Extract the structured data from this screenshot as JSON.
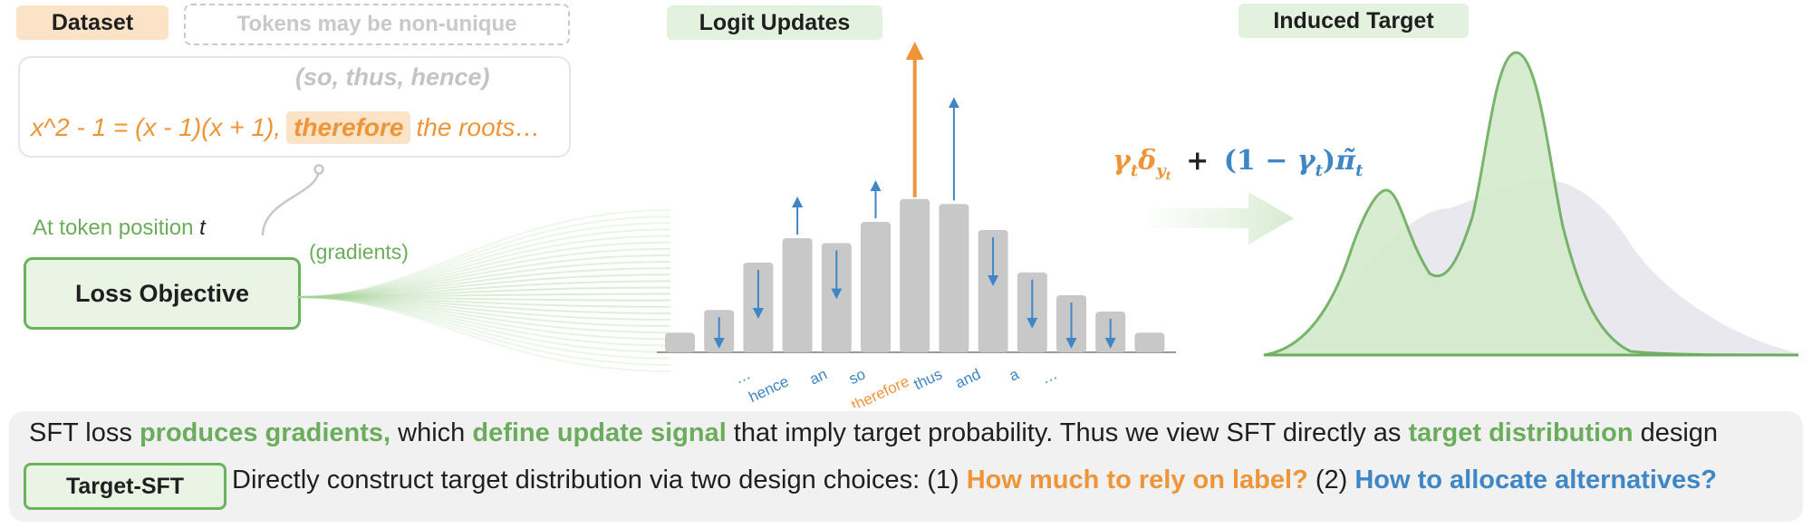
{
  "dataset": {
    "label": "Dataset",
    "note": "Tokens may be non-unique",
    "alternatives": "(so, thus, hence)",
    "sentence_prefix": "x^2 - 1 = (x - 1)(x + 1),",
    "highlight_token": "therefore",
    "sentence_suffix": "the roots…"
  },
  "loss": {
    "position_label_prefix": "At token position",
    "position_var": "t",
    "box_label": "Loss Objective",
    "gradients_label": "(gradients)"
  },
  "logit_updates": {
    "title": "Logit Updates",
    "tokens": [
      "…",
      "hence",
      "an",
      "so",
      "therefore",
      "thus",
      "and",
      "a",
      "…"
    ],
    "bars": [
      {
        "height": 0.12,
        "update": 0
      },
      {
        "height": 0.26,
        "update": -1
      },
      {
        "height": 0.55,
        "update": -1
      },
      {
        "height": 0.7,
        "update": 1
      },
      {
        "height": 0.67,
        "update": -1
      },
      {
        "height": 0.8,
        "update": 1
      },
      {
        "height": 0.94,
        "update": 2
      },
      {
        "height": 0.91,
        "update": 1
      },
      {
        "height": 0.75,
        "update": -1
      },
      {
        "height": 0.49,
        "update": -1
      },
      {
        "height": 0.35,
        "update": -1
      },
      {
        "height": 0.25,
        "update": -1
      },
      {
        "height": 0.12,
        "update": 0
      }
    ]
  },
  "formula": {
    "label_part": "γtδyt",
    "plus": "+",
    "alt_part": "(1 − γt)π̃t"
  },
  "induced_target": {
    "title": "Induced Target"
  },
  "bottom": {
    "line1": [
      {
        "text": "SFT loss ",
        "style": "plain"
      },
      {
        "text": "produces gradients,",
        "style": "green"
      },
      {
        "text": " which ",
        "style": "plain"
      },
      {
        "text": "define update signal",
        "style": "green"
      },
      {
        "text": " that  imply target probability. Thus we view SFT directly as ",
        "style": "plain"
      },
      {
        "text": "target distribution",
        "style": "green"
      },
      {
        "text": " design",
        "style": "plain"
      }
    ],
    "badge": "Target-SFT",
    "line2": [
      {
        "text": "Directly construct target distribution via two design choices: (1) ",
        "style": "plain"
      },
      {
        "text": "How much to rely on label?",
        "style": "orange"
      },
      {
        "text": " (2) ",
        "style": "plain"
      },
      {
        "text": "How to allocate alternatives?",
        "style": "blue"
      }
    ]
  },
  "colors": {
    "green": "#6aad5c",
    "orange": "#ef9539",
    "blue": "#3f86c7",
    "bar_gray": "#c8c8c8"
  }
}
